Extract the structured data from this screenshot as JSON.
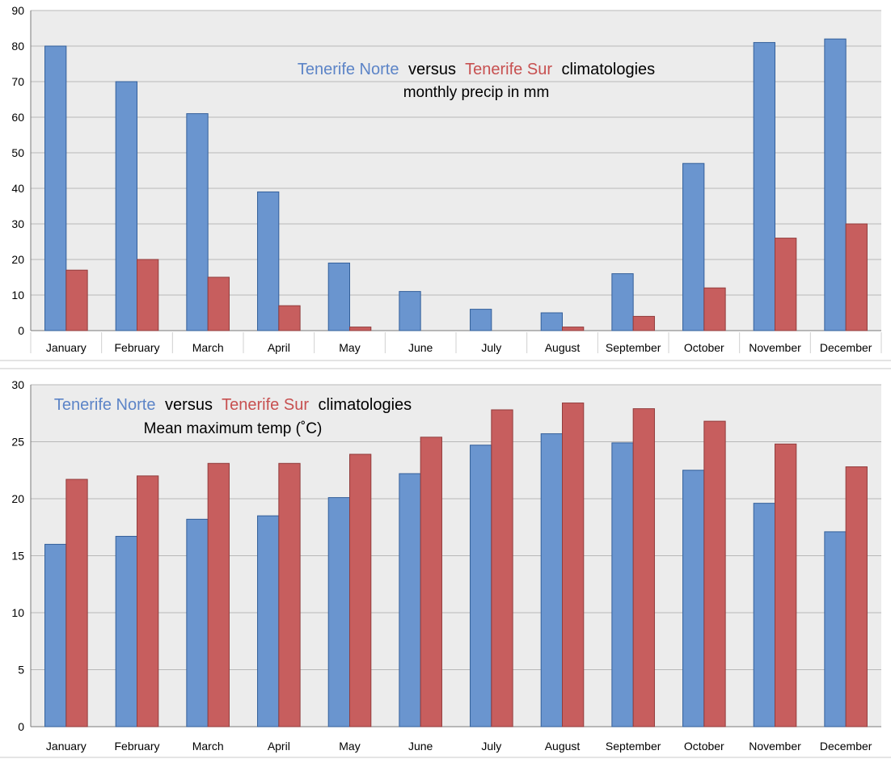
{
  "charts": {
    "precip": {
      "title": {
        "norte": "Tenerife Norte",
        "versus": "versus",
        "sur": "Tenerife Sur",
        "rest": "climatologies",
        "subtitle": "monthly precip in mm"
      }
    },
    "temp": {
      "title": {
        "norte": "Tenerife Norte",
        "versus": "versus",
        "sur": "Tenerife Sur",
        "rest": "climatologies",
        "subtitle": "Mean maximum temp (˚C)"
      }
    }
  },
  "chart_data": [
    {
      "type": "bar",
      "title": "Tenerife Norte versus Tenerife Sur climatologies monthly precip in mm",
      "categories": [
        "January",
        "February",
        "March",
        "April",
        "May",
        "June",
        "July",
        "August",
        "September",
        "October",
        "November",
        "December"
      ],
      "series": [
        {
          "name": "Tenerife Norte",
          "color": "#6a95cf",
          "values": [
            80,
            70,
            61,
            39,
            19,
            11,
            6,
            5,
            16,
            47,
            81,
            82
          ]
        },
        {
          "name": "Tenerife Sur",
          "color": "#c75e5e",
          "values": [
            17,
            20,
            15,
            7,
            1,
            0,
            0,
            1,
            4,
            12,
            26,
            30
          ]
        }
      ],
      "xlabel": "",
      "ylabel": "",
      "ylim": [
        0,
        90
      ],
      "yticks": [
        0,
        10,
        20,
        30,
        40,
        50,
        60,
        70,
        80,
        90
      ],
      "grid": true
    },
    {
      "type": "bar",
      "title": "Tenerife Norte versus Tenerife Sur climatologies Mean maximum temp (˚C)",
      "categories": [
        "January",
        "February",
        "March",
        "April",
        "May",
        "June",
        "July",
        "August",
        "September",
        "October",
        "November",
        "December"
      ],
      "series": [
        {
          "name": "Tenerife Norte",
          "color": "#6a95cf",
          "values": [
            16.0,
            16.7,
            18.2,
            18.5,
            20.1,
            22.2,
            24.7,
            25.7,
            24.9,
            22.5,
            19.6,
            17.1
          ]
        },
        {
          "name": "Tenerife Sur",
          "color": "#c75e5e",
          "values": [
            21.7,
            22.0,
            23.1,
            23.1,
            23.9,
            25.4,
            27.8,
            28.4,
            27.9,
            26.8,
            24.8,
            22.8
          ]
        }
      ],
      "xlabel": "",
      "ylabel": "",
      "ylim": [
        0,
        30
      ],
      "yticks": [
        0,
        5,
        10,
        15,
        20,
        25,
        30
      ],
      "grid": true
    }
  ]
}
